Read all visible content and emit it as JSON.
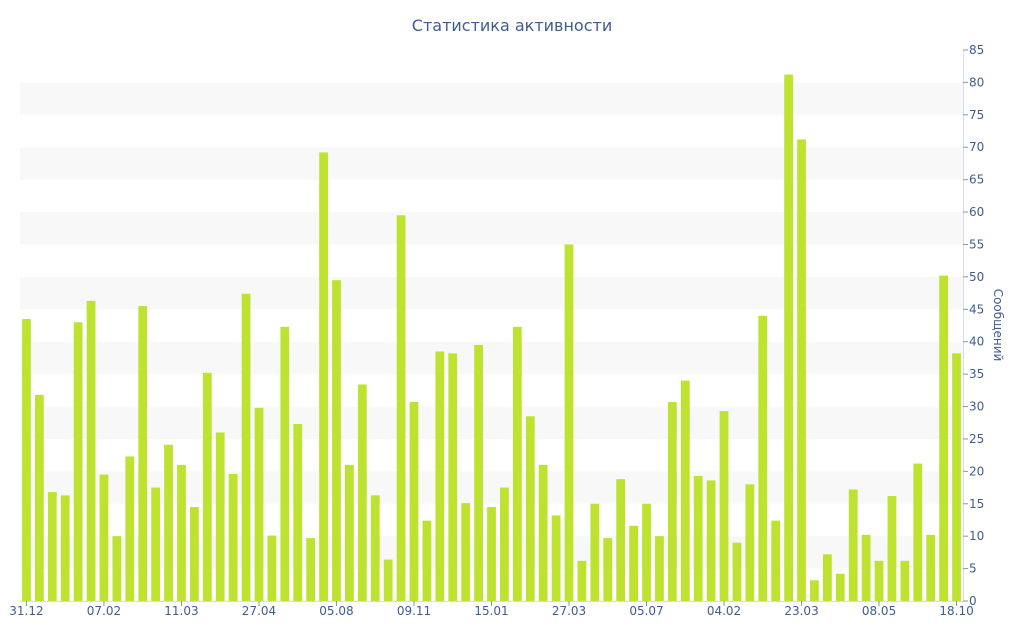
{
  "chart_data": {
    "type": "bar",
    "title": "Статистика активности",
    "ylabel": "Сообщений",
    "xlabel": "",
    "ylim": [
      0,
      85
    ],
    "y_ticks": [
      0,
      5,
      10,
      15,
      20,
      25,
      30,
      35,
      40,
      45,
      50,
      55,
      60,
      65,
      70,
      75,
      80,
      85
    ],
    "x_tick_labels": [
      "31.12",
      "07.02",
      "11.03",
      "27.04",
      "05.08",
      "09.11",
      "15.01",
      "27.03",
      "05.07",
      "04.02",
      "23.03",
      "08.05",
      "18.10"
    ],
    "x_tick_label_bar_index": [
      0,
      6,
      12,
      18,
      24,
      30,
      36,
      42,
      48,
      54,
      60,
      66,
      72
    ],
    "grid": "alternating horizontal bands",
    "y_axis_position": "right",
    "values": [
      43.5,
      31.8,
      16.8,
      16.3,
      43,
      46.3,
      19.5,
      10,
      22.3,
      45.5,
      17.5,
      24.1,
      21,
      14.5,
      35.2,
      26,
      19.6,
      47.4,
      29.8,
      10.1,
      42.3,
      27.3,
      9.7,
      69.2,
      49.5,
      21,
      33.4,
      16.3,
      6.4,
      59.5,
      30.7,
      12.4,
      38.5,
      38.2,
      15.1,
      39.5,
      14.5,
      17.5,
      42.3,
      28.5,
      21,
      13.2,
      55,
      6.2,
      15,
      9.7,
      18.8,
      11.6,
      15,
      10,
      30.7,
      34,
      19.3,
      18.6,
      29.3,
      9,
      18,
      44,
      12.4,
      81.2,
      71.2,
      3.2,
      7.2,
      4.2,
      17.2,
      10.2,
      6.2,
      16.2,
      6.2,
      21.2,
      10.2,
      50.2,
      38.2
    ]
  },
  "colors": {
    "bar": "#bde230",
    "band": "#f8f8f8",
    "text": "#3f5d8e"
  }
}
